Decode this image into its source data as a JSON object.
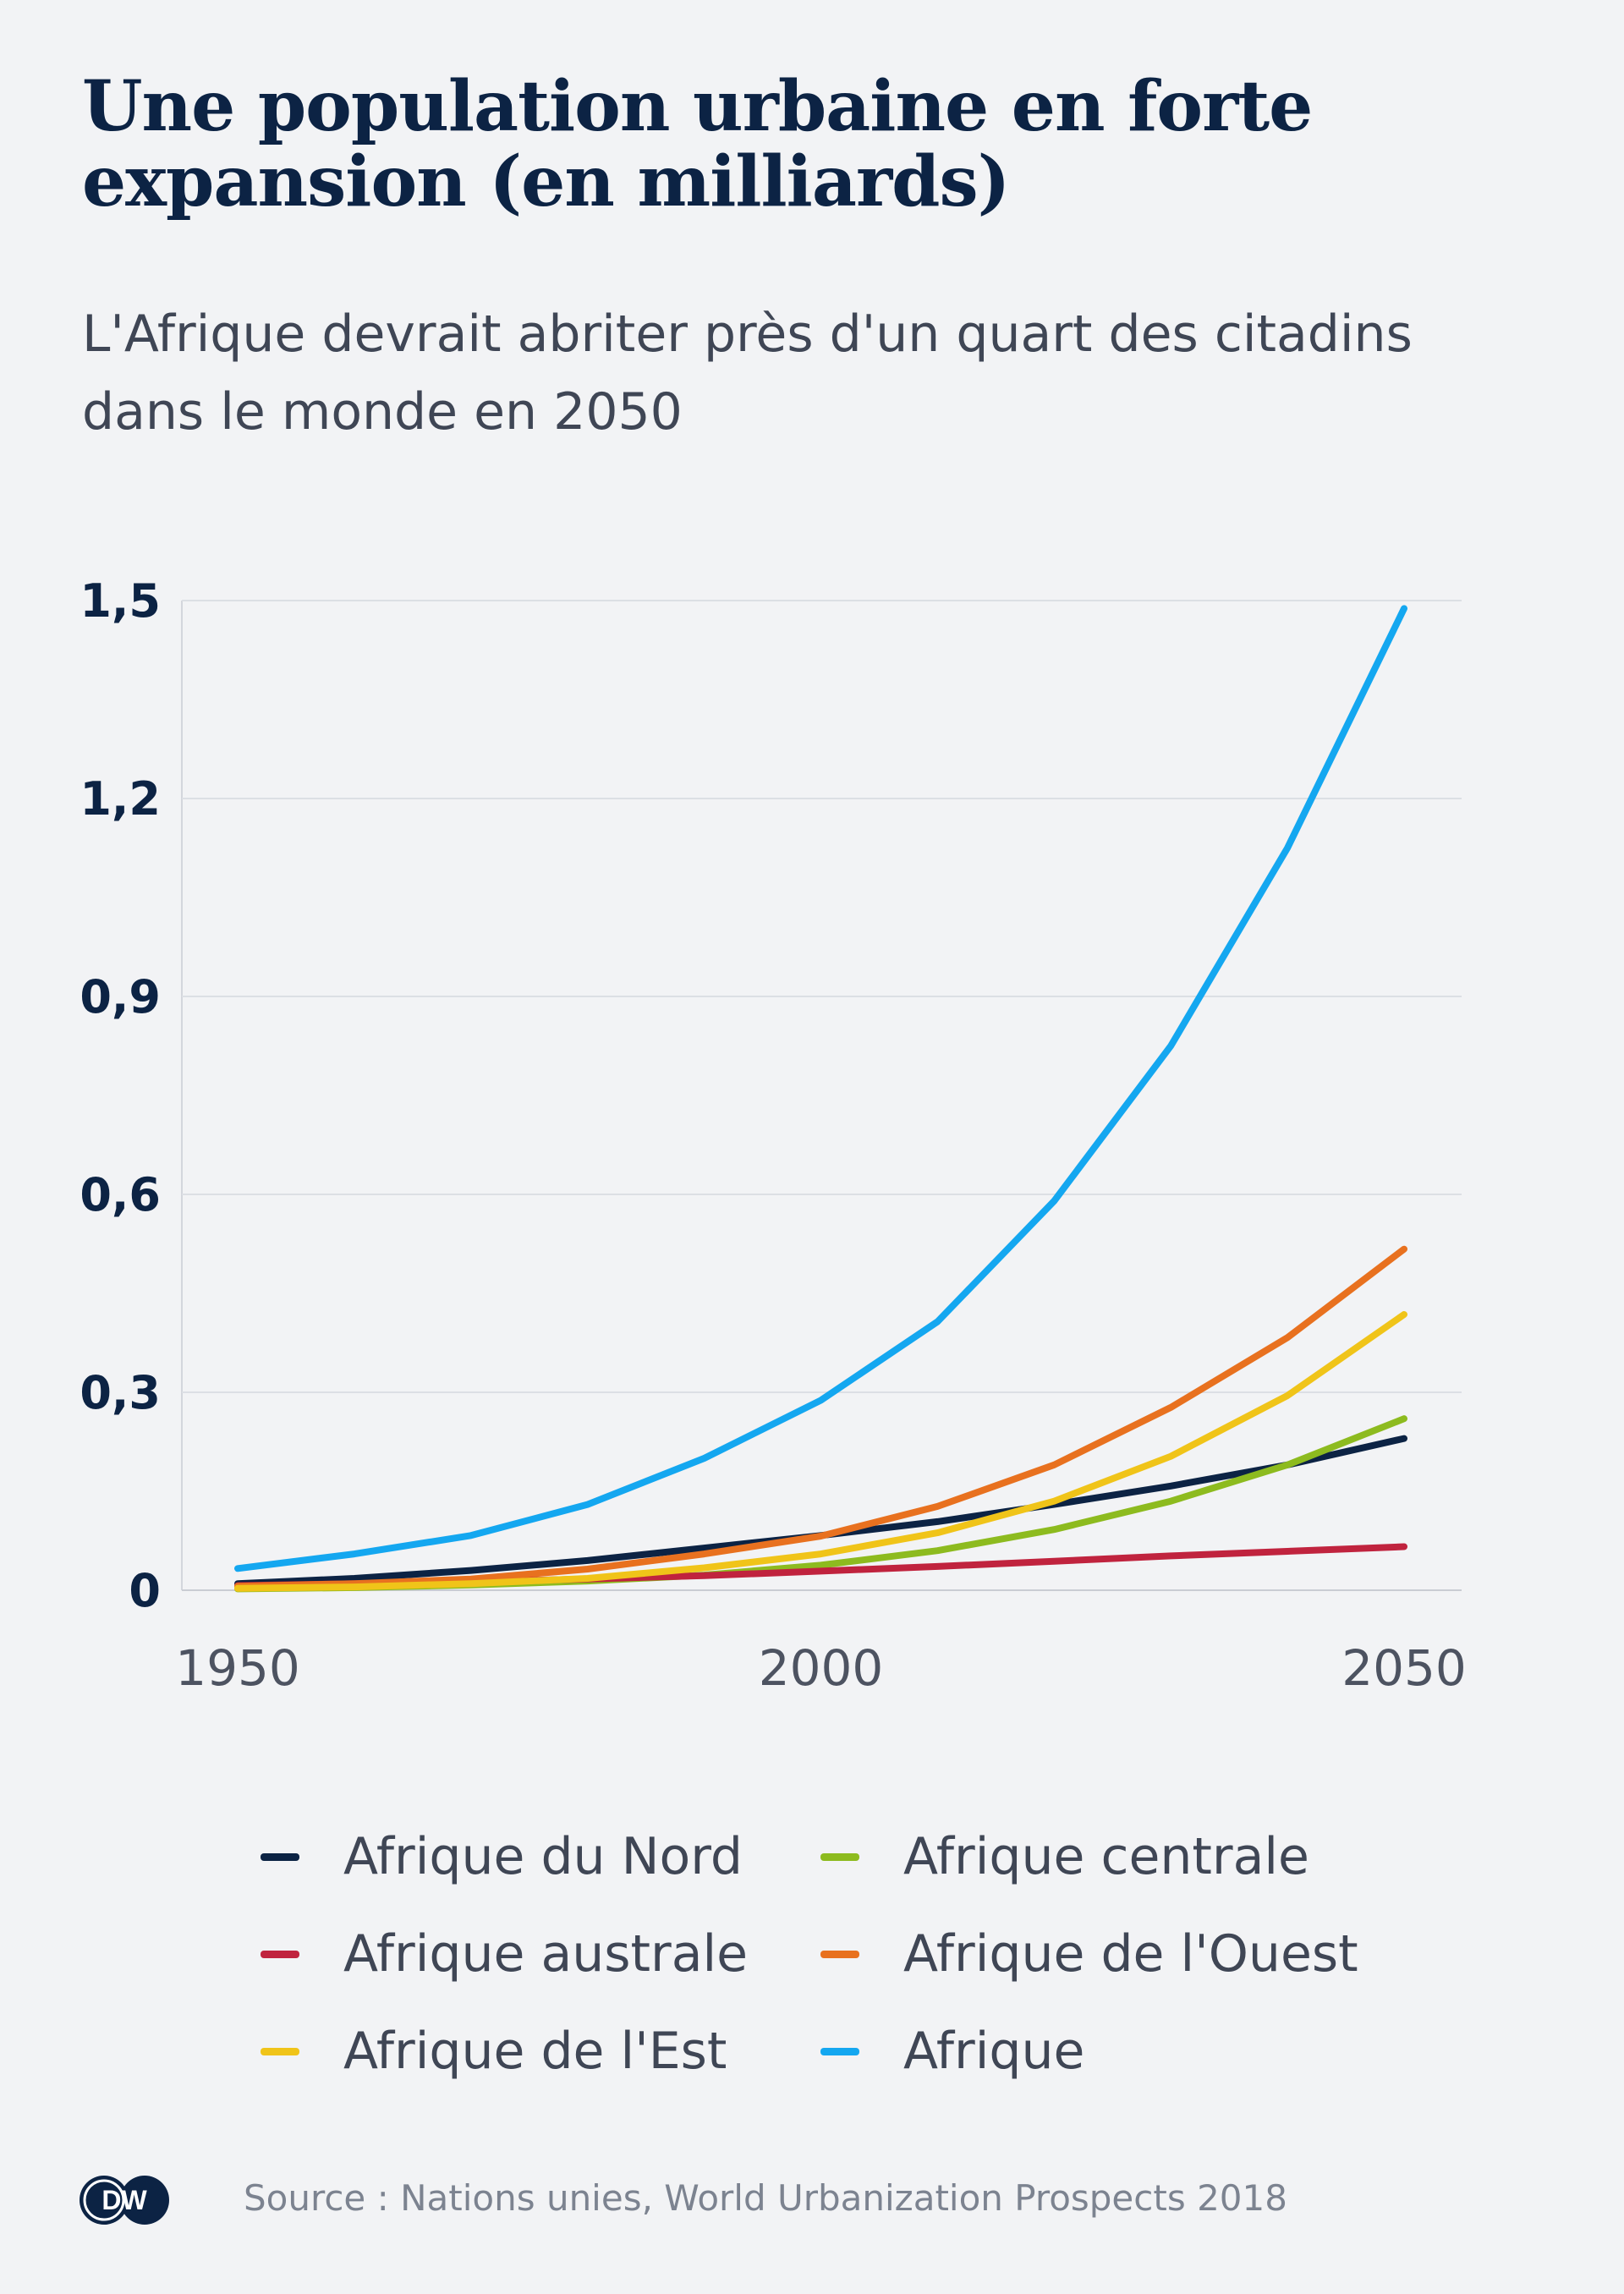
{
  "header": {
    "title": "Une population urbaine en forte expansion (en milliards)",
    "subtitle": "L'Afrique devrait abriter près d'un quart des citadins dans le monde en 2050"
  },
  "footer": {
    "logo_text": "DW",
    "source": "Source : Nations unies, World Urbanization Prospects 2018"
  },
  "chart_data": {
    "type": "line",
    "title": "Une population urbaine en forte expansion (en milliards)",
    "subtitle": "L'Afrique devrait abriter près d'un quart des citadins dans le monde en 2050",
    "xlabel": "",
    "ylabel": "",
    "xlim": [
      1950,
      2050
    ],
    "ylim": [
      0,
      1.5
    ],
    "xticks": [
      {
        "value": 1950,
        "label": "1950"
      },
      {
        "value": 2000,
        "label": "2000"
      },
      {
        "value": 2050,
        "label": "2050"
      }
    ],
    "yticks": [
      {
        "value": 0,
        "label": "0"
      },
      {
        "value": 0.3,
        "label": "0,3"
      },
      {
        "value": 0.6,
        "label": "0,6"
      },
      {
        "value": 0.9,
        "label": "0,9"
      },
      {
        "value": 1.2,
        "label": "1,2"
      },
      {
        "value": 1.5,
        "label": "1,5"
      }
    ],
    "grid": "horizontal",
    "legend_position": "bottom",
    "x": [
      1950,
      1960,
      1970,
      1980,
      1990,
      2000,
      2010,
      2020,
      2030,
      2040,
      2050
    ],
    "series": [
      {
        "name": "Afrique du Nord",
        "color": "#0c2344",
        "values": [
          0.01,
          0.018,
          0.03,
          0.045,
          0.064,
          0.083,
          0.104,
          0.13,
          0.158,
          0.19,
          0.23
        ]
      },
      {
        "name": "Afrique centrale",
        "color": "#8dbb1f",
        "values": [
          0.002,
          0.004,
          0.008,
          0.014,
          0.023,
          0.038,
          0.06,
          0.092,
          0.135,
          0.19,
          0.26
        ]
      },
      {
        "name": "Afrique australe",
        "color": "#c0233e",
        "values": [
          0.007,
          0.01,
          0.013,
          0.017,
          0.022,
          0.029,
          0.036,
          0.044,
          0.052,
          0.059,
          0.066
        ]
      },
      {
        "name": "Afrique de l'Ouest",
        "color": "#e8711f",
        "values": [
          0.006,
          0.01,
          0.017,
          0.032,
          0.055,
          0.082,
          0.127,
          0.19,
          0.277,
          0.383,
          0.517
        ]
      },
      {
        "name": "Afrique de l'Est",
        "color": "#f0c419",
        "values": [
          0.003,
          0.005,
          0.01,
          0.018,
          0.034,
          0.055,
          0.087,
          0.135,
          0.203,
          0.295,
          0.418
        ]
      },
      {
        "name": "Afrique",
        "color": "#14a7f0",
        "values": [
          0.033,
          0.055,
          0.083,
          0.13,
          0.2,
          0.288,
          0.407,
          0.59,
          0.825,
          1.125,
          1.488
        ]
      }
    ]
  }
}
